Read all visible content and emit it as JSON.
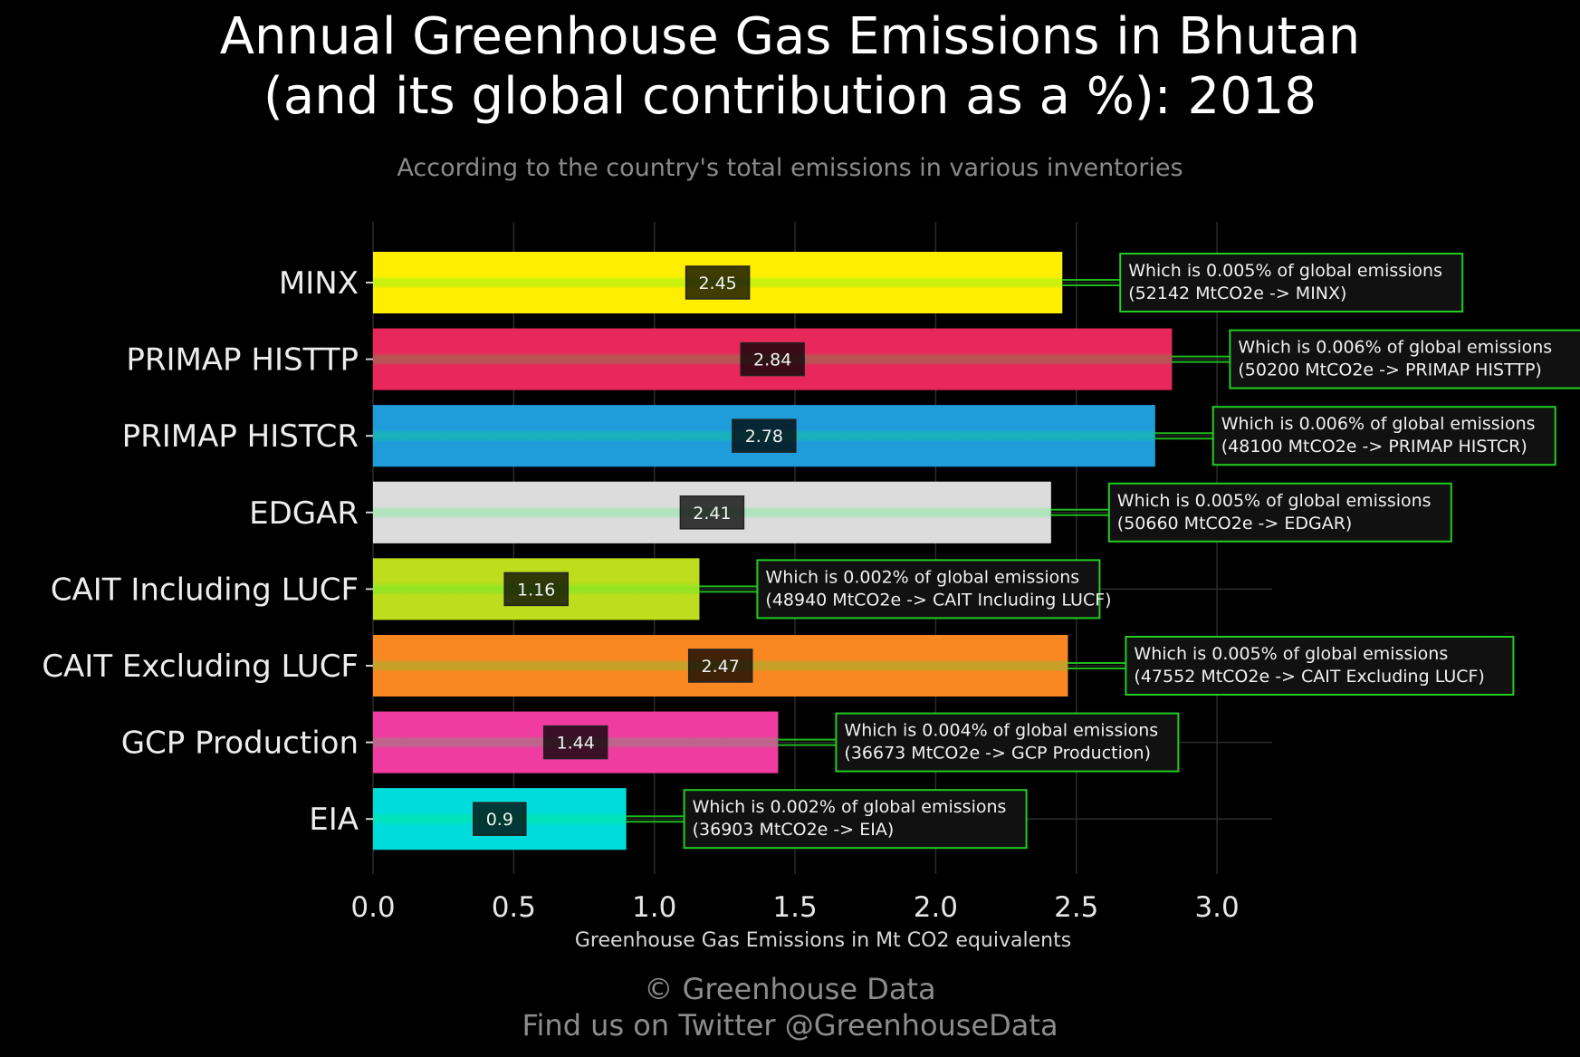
{
  "title_lines": [
    "Annual Greenhouse Gas Emissions in Bhutan",
    "(and its global contribution as a %): 2018"
  ],
  "subtitle": "According to the country's total emissions in various inventories",
  "credit": {
    "line1": "© Greenhouse Data",
    "line2": "Find us on Twitter @GreenhouseData"
  },
  "chart_data": {
    "type": "bar",
    "orientation": "horizontal",
    "xlabel": "Greenhouse Gas Emissions in Mt CO2 equivalents",
    "ylabel": "",
    "xlim": [
      0,
      3.2
    ],
    "xticks": [
      "0.0",
      "0.5",
      "1.0",
      "1.5",
      "2.0",
      "2.5",
      "3.0"
    ],
    "grid": true,
    "categories": [
      "MINX",
      "PRIMAP HISTTP",
      "PRIMAP HISTCR",
      "EDGAR",
      "CAIT Including LUCF",
      "CAIT Excluding LUCF",
      "GCP Production",
      "EIA"
    ],
    "values": [
      2.45,
      2.84,
      2.78,
      2.41,
      1.16,
      2.47,
      1.44,
      0.9
    ],
    "value_labels": [
      "2.45",
      "2.84",
      "2.78",
      "2.41",
      "1.16",
      "2.47",
      "1.44",
      "0.9"
    ],
    "colors": [
      "#ffee00",
      "#e8285a",
      "#1f9ddb",
      "#dcdcdc",
      "#bedd1c",
      "#fa8822",
      "#f03ca0",
      "#00dcdc"
    ],
    "annotations": [
      [
        "Which is 0.005% of global emissions",
        "(52142 MtCO2e -> MINX)"
      ],
      [
        "Which is 0.006% of global emissions",
        "(50200 MtCO2e -> PRIMAP HISTTP)"
      ],
      [
        "Which is 0.006% of global emissions",
        "(48100 MtCO2e -> PRIMAP HISTCR)"
      ],
      [
        "Which is 0.005% of global emissions",
        "(50660 MtCO2e -> EDGAR)"
      ],
      [
        "Which is 0.002% of global emissions",
        "(48940 MtCO2e -> CAIT Including LUCF)"
      ],
      [
        "Which is 0.005% of global emissions",
        "(47552 MtCO2e -> CAIT Excluding LUCF)"
      ],
      [
        "Which is 0.004% of global emissions",
        "(36673 MtCO2e -> GCP Production)"
      ],
      [
        "Which is 0.002% of global emissions",
        "(36903 MtCO2e -> EIA)"
      ]
    ]
  }
}
